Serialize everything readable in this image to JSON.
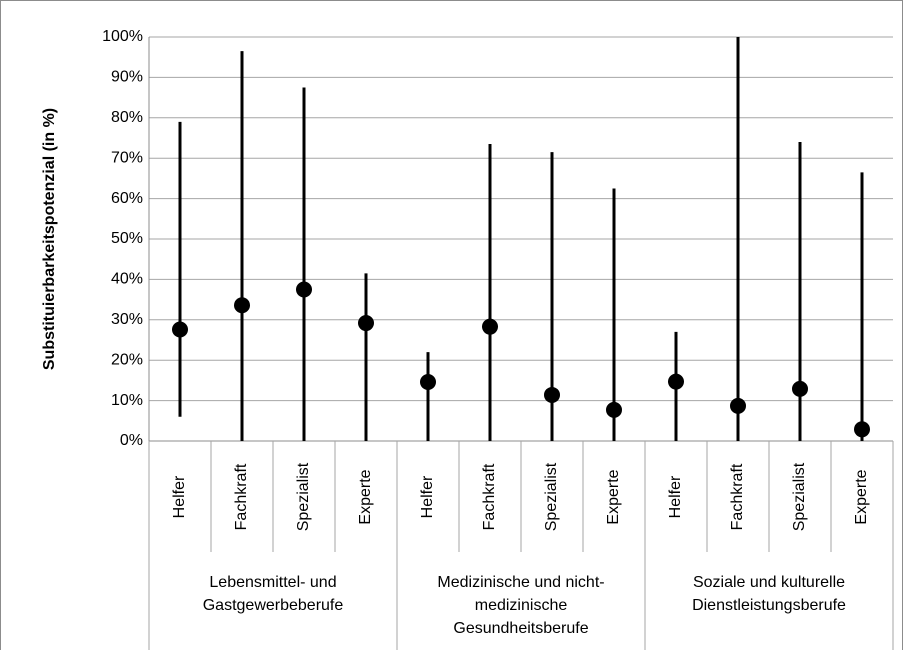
{
  "chart_data": {
    "type": "range",
    "y_label": "Substituierbarkeitspotenzial (in %)",
    "groups": [
      {
        "label_lines": [
          "Lebensmittel- und",
          "Gastgewerbeberufe"
        ],
        "categories": [
          "Helfer",
          "Fachkraft",
          "Spezialist",
          "Experte"
        ]
      },
      {
        "label_lines": [
          "Medizinische und nicht-",
          "medizinische",
          "Gesundheitsberufe"
        ],
        "categories": [
          "Helfer",
          "Fachkraft",
          "Spezialist",
          "Experte"
        ]
      },
      {
        "label_lines": [
          "Soziale und kulturelle",
          "Dienstleistungsberufe"
        ],
        "categories": [
          "Helfer",
          "Fachkraft",
          "Spezialist",
          "Experte"
        ]
      }
    ],
    "low": [
      6,
      0,
      0,
      0,
      0,
      0,
      0,
      0,
      0,
      0,
      0,
      0
    ],
    "high": [
      79,
      96.5,
      87.5,
      41.5,
      22,
      73.5,
      71.5,
      62.5,
      27,
      100,
      74,
      66.5
    ],
    "values": [
      27.6,
      33.6,
      37.5,
      29.2,
      14.6,
      28.3,
      11.4,
      7.7,
      14.7,
      8.7,
      12.9,
      2.9
    ],
    "color": "#000000",
    "ylim": [
      0,
      100
    ],
    "yticks": [
      {
        "value": 0,
        "label": "0%"
      },
      {
        "value": 10,
        "label": "10%"
      },
      {
        "value": 20,
        "label": "20%"
      },
      {
        "value": 30,
        "label": "30%"
      },
      {
        "value": 40,
        "label": "40%"
      },
      {
        "value": 50,
        "label": "50%"
      },
      {
        "value": 60,
        "label": "60%"
      },
      {
        "value": 70,
        "label": "70%"
      },
      {
        "value": 80,
        "label": "80%"
      },
      {
        "value": 90,
        "label": "90%"
      },
      {
        "value": 100,
        "label": "100%"
      }
    ],
    "grid": true
  }
}
